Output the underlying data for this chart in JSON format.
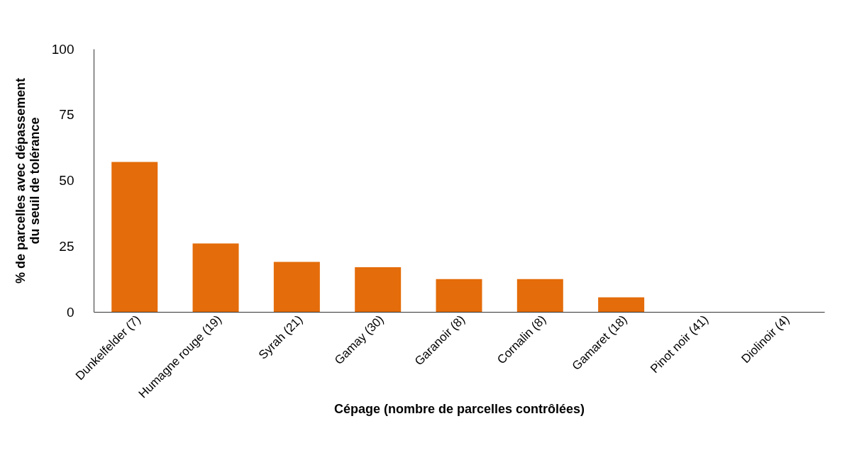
{
  "chart_data": {
    "type": "bar",
    "xlabel": "Cépage (nombre de parcelles contrôlées)",
    "ylabel": "% de parcelles avec dépassement\ndu seuil de tolérance",
    "categories": [
      "Dunkelfelder (7)",
      "Humagne rouge (19)",
      "Syrah (21)",
      "Gamay (30)",
      "Garanoir (8)",
      "Cornalin (8)",
      "Gamaret (18)",
      "Pinot noir (41)",
      "Diolinoir (4)"
    ],
    "values": [
      57,
      26,
      19,
      17,
      12.5,
      12.5,
      5.5,
      0,
      0
    ],
    "color": "#e46c0a",
    "ylim": [
      0,
      100
    ],
    "yticks": [
      0,
      25,
      50,
      75,
      100
    ],
    "grid": false
  }
}
